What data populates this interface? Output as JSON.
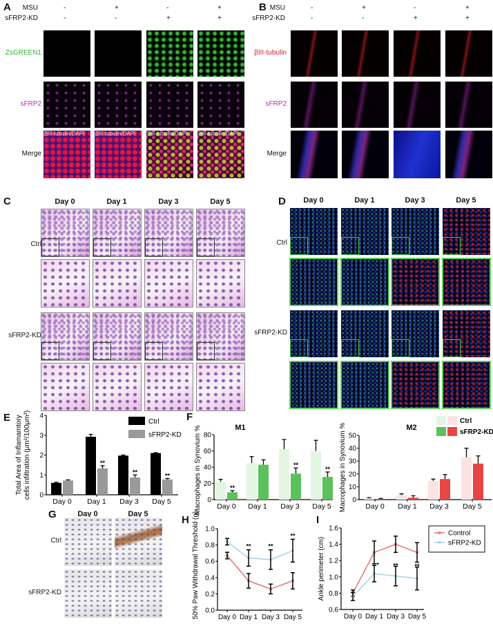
{
  "panels": {
    "A": "A",
    "B": "B",
    "C": "C",
    "D": "D",
    "E": "E",
    "F": "F",
    "G": "G",
    "H": "H",
    "I": "I"
  },
  "conditions": {
    "msu_label": "MSU",
    "kd_label": "sFRP2-KD",
    "msu": [
      "-",
      "+",
      "-",
      "+"
    ],
    "kd": [
      "-",
      "-",
      "+",
      "+"
    ]
  },
  "panel_a": {
    "rows": [
      "ZsGREEN1",
      "sFRP2",
      "Merge"
    ],
    "row_colors": [
      "#2fb52f",
      "#b02fb0",
      "#111111"
    ],
    "merge_overlay": "βIII-tubulin/DAPI"
  },
  "panel_b": {
    "rows": [
      "βIII-tubulin",
      "sFRP2",
      "Merge"
    ],
    "row_colors": [
      "#d0202a",
      "#b02fb0",
      "#111111"
    ]
  },
  "days": [
    "Day 0",
    "Day 1",
    "Day 3",
    "Day 5"
  ],
  "panel_c": {
    "groups": [
      "Ctrl",
      "sFRP2-KD"
    ]
  },
  "panel_d": {
    "groups": [
      "Ctrl",
      "sFRP2-KD"
    ]
  },
  "panel_g": {
    "days": [
      "Day 0",
      "Day 5"
    ],
    "groups": [
      "Ctrl",
      "sFRP2-KD"
    ]
  },
  "chart_data": [
    {
      "panel": "E",
      "type": "bar",
      "ylabel": "Total Area of Inflamamtory cells infiltration (μm²/100μm²)",
      "categories": [
        "Day 0",
        "Day 1",
        "Day 3",
        "Day 5"
      ],
      "ylim": [
        0,
        4
      ],
      "yticks": [
        0,
        1,
        2,
        3,
        4
      ],
      "legend": "top-right",
      "series": [
        {
          "name": "Ctrl",
          "color": "#000000",
          "values": [
            0.6,
            2.92,
            1.97,
            2.1
          ],
          "errors": [
            0.03,
            0.12,
            0.03,
            0.02
          ],
          "stars": [
            "",
            "",
            "",
            ""
          ]
        },
        {
          "name": "sFRP2-KD",
          "color": "#9a9a9a",
          "values": [
            0.72,
            1.33,
            0.87,
            0.77
          ],
          "errors": [
            0.03,
            0.13,
            0.13,
            0.05
          ],
          "stars": [
            "",
            "**",
            "**",
            "**"
          ]
        }
      ]
    },
    {
      "panel": "F",
      "type": "bar",
      "title": "M1",
      "ylabel": "Macrophages in Synovium %",
      "categories": [
        "Day 0",
        "Day 1",
        "Day 3",
        "Day 5"
      ],
      "ylim": [
        0,
        80
      ],
      "yticks": [
        0,
        20,
        40,
        60,
        80
      ],
      "series": [
        {
          "name": "Ctrl",
          "color": "#e3f6e3",
          "values": [
            22,
            45,
            62,
            60
          ],
          "errors": [
            3,
            8,
            12,
            13
          ],
          "stars": [
            "",
            "",
            "",
            ""
          ]
        },
        {
          "name": "sFRP2-KD",
          "color": "#5cc15c",
          "values": [
            9,
            43,
            32,
            28
          ],
          "errors": [
            2,
            6,
            7,
            6
          ],
          "stars": [
            "**",
            "",
            "**",
            "**"
          ]
        }
      ]
    },
    {
      "panel": "F",
      "type": "bar",
      "title": "M2",
      "ylabel": "Macrophages in Synovium %",
      "categories": [
        "Day 0",
        "Day 1",
        "Day 3",
        "Day 5"
      ],
      "ylim": [
        0,
        50
      ],
      "yticks": [
        0,
        10,
        20,
        30,
        40,
        50
      ],
      "legend": "top-right",
      "series": [
        {
          "name": "Ctrl",
          "color": "#fde2e2",
          "values": [
            1,
            3.5,
            14.5,
            33
          ],
          "errors": [
            0.5,
            1,
            1.5,
            7
          ],
          "stars": [
            "",
            "",
            "",
            ""
          ]
        },
        {
          "name": "sFRP2-KD",
          "color": "#e84545",
          "values": [
            0.5,
            1.5,
            16,
            28
          ],
          "errors": [
            0.4,
            1.5,
            3.5,
            6
          ],
          "stars": [
            "",
            "",
            "",
            ""
          ]
        }
      ]
    },
    {
      "panel": "H",
      "type": "line",
      "ylabel": "50% Paw Withdrawal Threshold (g)",
      "categories": [
        "Day 0",
        "Day 1",
        "Day 3",
        "Day 5"
      ],
      "ylim": [
        0,
        1.0
      ],
      "yticks": [
        "0.0",
        "0.2",
        "0.4",
        "0.6",
        "0.8",
        "1.0"
      ],
      "series": [
        {
          "name": "Control",
          "color": "#e47a7a",
          "values": [
            0.67,
            0.36,
            0.26,
            0.36
          ],
          "errors": [
            0.04,
            0.09,
            0.06,
            0.1
          ]
        },
        {
          "name": "sFRP2-KD",
          "color": "#a6d6e6",
          "values": [
            0.84,
            0.64,
            0.62,
            0.73
          ],
          "errors": [
            0.04,
            0.1,
            0.12,
            0.14
          ]
        }
      ],
      "stars": [
        "",
        "**",
        "**",
        "**"
      ]
    },
    {
      "panel": "I",
      "type": "line",
      "ylabel": "Ankle perimeter (cm)",
      "categories": [
        "Day 0",
        "Day 1",
        "Day 3",
        "Day 5"
      ],
      "ylim": [
        0.6,
        1.6
      ],
      "yticks": [
        "0.6",
        "0.8",
        "1.0",
        "1.2",
        "1.4",
        "1.6"
      ],
      "legend": "right",
      "series": [
        {
          "name": "Control",
          "color": "#e47a7a",
          "values": [
            0.8,
            1.3,
            1.4,
            1.3
          ],
          "errors": [
            0.04,
            0.14,
            0.1,
            0.12
          ]
        },
        {
          "name": "sFRP2-KD",
          "color": "#a6d6e6",
          "values": [
            0.76,
            1.04,
            1.01,
            0.98
          ],
          "errors": [
            0.05,
            0.1,
            0.12,
            0.14
          ]
        }
      ],
      "stars": [
        "",
        "*",
        "**",
        "**"
      ]
    }
  ]
}
